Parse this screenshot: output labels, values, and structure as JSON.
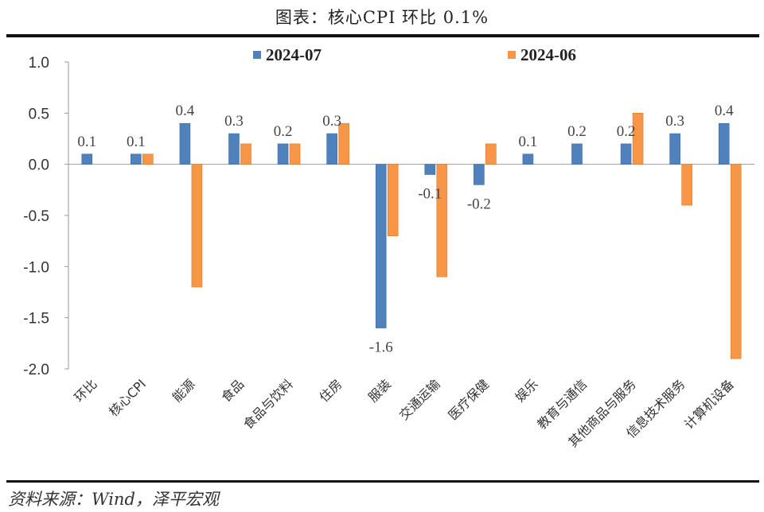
{
  "title": "图表：核心CPI 环比 0.1%",
  "source": "资料来源：Wind，泽平宏观",
  "chart_data": {
    "type": "bar",
    "categories": [
      "环比",
      "核心CPI",
      "能源",
      "食品",
      "食品与饮料",
      "住房",
      "服装",
      "交通运输",
      "医疗保健",
      "娱乐",
      "教育与通信",
      "其他商品与服务",
      "信息技术服务",
      "计算机设备"
    ],
    "series": [
      {
        "name": "2024-07",
        "color": "#4f81bd",
        "values": [
          0.1,
          0.1,
          0.4,
          0.3,
          0.2,
          0.3,
          -1.6,
          -0.1,
          -0.2,
          0.1,
          0.2,
          0.2,
          0.3,
          0.4
        ]
      },
      {
        "name": "2024-06",
        "color": "#f79646",
        "values": [
          null,
          0.1,
          -1.2,
          0.2,
          0.2,
          0.4,
          -0.7,
          -1.1,
          0.2,
          null,
          null,
          0.5,
          -0.4,
          -1.9
        ]
      }
    ],
    "data_labels": [
      "0.1",
      "0.1",
      "0.4",
      "0.3",
      "0.2",
      "0.3",
      "-1.6",
      "-0.1",
      "-0.2",
      "0.1",
      "0.2",
      "0.2",
      "0.3",
      "0.4"
    ],
    "ylim": [
      -2.0,
      1.0
    ],
    "yticks": [
      "1.0",
      "0.5",
      "0.0",
      "-0.5",
      "-1.0",
      "-1.5",
      "-2.0"
    ],
    "ytick_values": [
      1.0,
      0.5,
      0.0,
      -0.5,
      -1.0,
      -1.5,
      -2.0
    ],
    "legend_position": "top",
    "grid": false
  }
}
